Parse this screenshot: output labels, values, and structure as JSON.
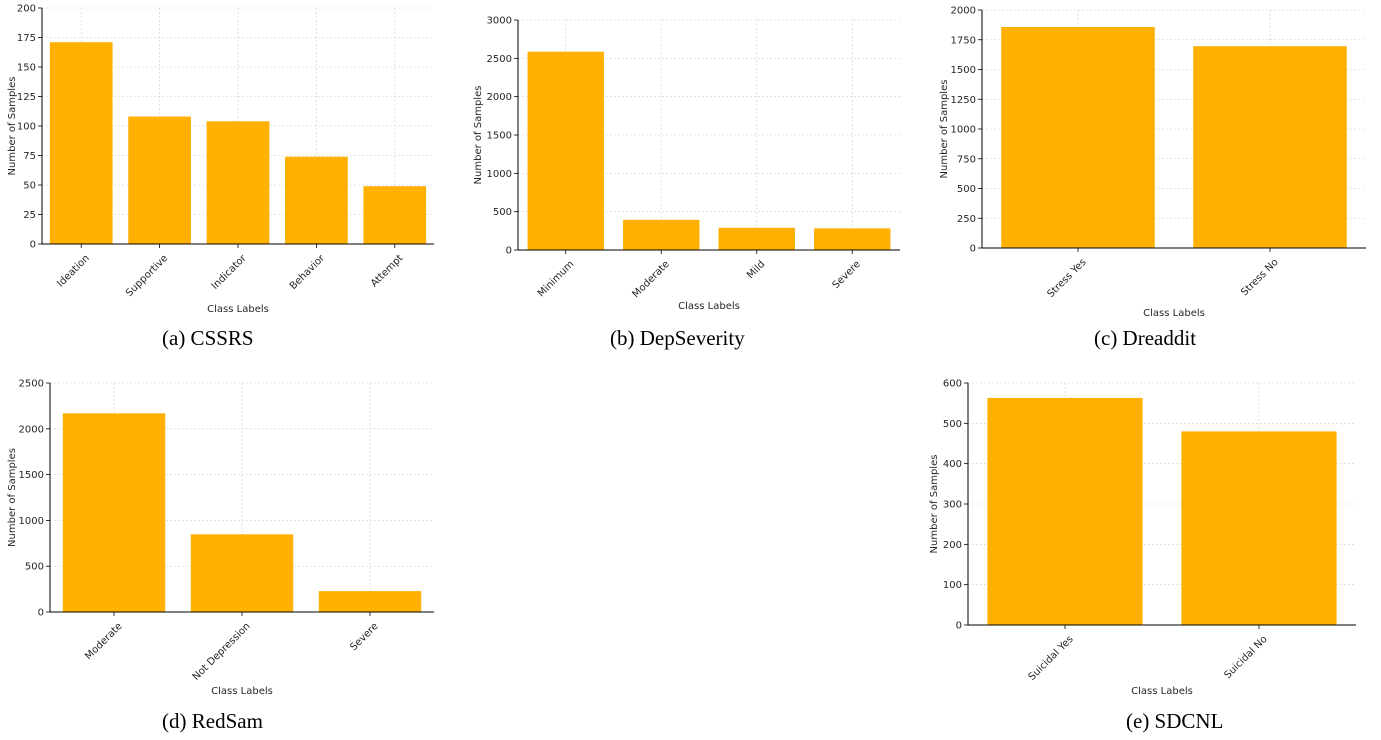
{
  "colors": {
    "bar": "#ffb000",
    "axis": "#000000",
    "grid": "#cfcfcf",
    "text": "#262626"
  },
  "chart_data": [
    {
      "type": "bar",
      "caption": "(a) CSSRS",
      "categories": [
        "Ideation",
        "Supportive",
        "Indicator",
        "Behavior",
        "Attempt"
      ],
      "values": [
        171,
        108,
        104,
        74,
        49
      ],
      "xlabel": "Class Labels",
      "ylabel": "Number of Samples",
      "ylim": [
        0,
        200
      ],
      "yticks": [
        0,
        25,
        50,
        75,
        100,
        125,
        150,
        175,
        200
      ],
      "grid": true
    },
    {
      "type": "bar",
      "caption": "(b) DepSeverity",
      "categories": [
        "Minimum",
        "Moderate",
        "Mild",
        "Severe"
      ],
      "values": [
        2587,
        394,
        290,
        282
      ],
      "xlabel": "Class Labels",
      "ylabel": "Number of Samples",
      "ylim": [
        0,
        3000
      ],
      "yticks": [
        0,
        500,
        1000,
        1500,
        2000,
        2500,
        3000
      ],
      "grid": true
    },
    {
      "type": "bar",
      "caption": "(c) Dreaddit",
      "categories": [
        "Stress Yes",
        "Stress No"
      ],
      "values": [
        1857,
        1696
      ],
      "xlabel": "Class Labels",
      "ylabel": "Number of Samples",
      "ylim": [
        0,
        2000
      ],
      "yticks": [
        0,
        250,
        500,
        750,
        1000,
        1250,
        1500,
        1750,
        2000
      ],
      "grid": true
    },
    {
      "type": "bar",
      "caption": "(d) RedSam",
      "categories": [
        "Moderate",
        "Not Depression",
        "Severe"
      ],
      "values": [
        2169,
        848,
        228
      ],
      "xlabel": "Class Labels",
      "ylabel": "Number of Samples",
      "ylim": [
        0,
        2500
      ],
      "yticks": [
        0,
        500,
        1000,
        1500,
        2000,
        2500
      ],
      "grid": true
    },
    {
      "type": "bar",
      "caption": "(e) SDCNL",
      "categories": [
        "Suicidal Yes",
        "Suicidal No"
      ],
      "values": [
        563,
        480
      ],
      "xlabel": "Class Labels",
      "ylabel": "Number of Samples",
      "ylim": [
        0,
        600
      ],
      "yticks": [
        0,
        100,
        200,
        300,
        400,
        500,
        600
      ],
      "grid": true
    }
  ]
}
